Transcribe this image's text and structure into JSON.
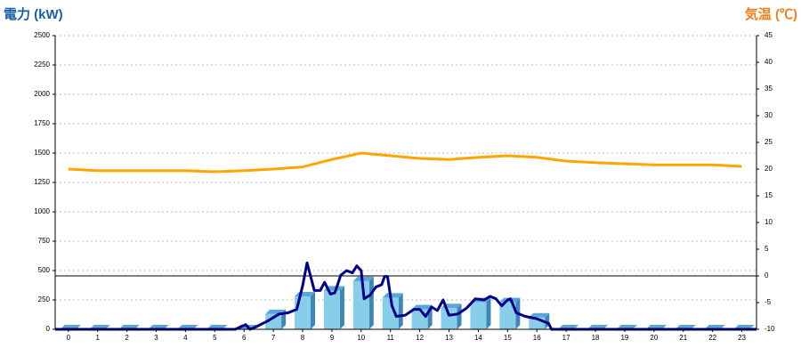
{
  "chart_data": {
    "type": "combo",
    "ylabel": "電力 (kW)",
    "y2label": "気温 (℃)",
    "xlim": [
      -0.45,
      23.5
    ],
    "xticks": [
      0,
      1,
      2,
      3,
      4,
      5,
      6,
      7,
      8,
      9,
      10,
      11,
      12,
      13,
      14,
      15,
      16,
      17,
      18,
      19,
      20,
      21,
      22,
      23
    ],
    "ylim": [
      0,
      2500
    ],
    "yticks": [
      0,
      250,
      500,
      750,
      1000,
      1250,
      1500,
      1750,
      2000,
      2250,
      2500
    ],
    "y2lim": [
      -10,
      45
    ],
    "y2ticks": [
      -10,
      -5,
      0,
      5,
      10,
      15,
      20,
      25,
      30,
      35,
      40,
      45
    ],
    "grid": true,
    "series": [
      {
        "type": "bar",
        "color": "#87ceeb",
        "x": [
          0,
          1,
          2,
          3,
          4,
          5,
          6,
          7,
          8,
          9,
          10,
          11,
          12,
          13,
          14,
          15,
          16,
          17,
          18,
          19,
          20,
          21,
          22,
          23
        ],
        "values": [
          0,
          0,
          0,
          0,
          0,
          0,
          0,
          130,
          280,
          330,
          410,
          270,
          170,
          180,
          230,
          230,
          100,
          0,
          0,
          0,
          0,
          0,
          0,
          0
        ]
      },
      {
        "type": "line",
        "color": "#00008b",
        "x": [
          -0.45,
          5.7,
          6.05,
          6.2,
          6.4,
          6.8,
          7.2,
          7.5,
          7.8,
          8.0,
          8.15,
          8.4,
          8.6,
          8.75,
          8.95,
          9.1,
          9.3,
          9.5,
          9.7,
          9.85,
          10.0,
          10.1,
          10.3,
          10.5,
          10.7,
          10.8,
          10.9,
          11.05,
          11.2,
          11.5,
          11.8,
          12.0,
          12.2,
          12.4,
          12.6,
          12.8,
          13.0,
          13.3,
          13.6,
          13.9,
          14.2,
          14.4,
          14.6,
          14.8,
          15.0,
          15.1,
          15.3,
          15.6,
          16.0,
          16.4,
          16.5,
          23.5
        ],
        "values": [
          0,
          0,
          40,
          0,
          20,
          70,
          130,
          140,
          170,
          370,
          565,
          330,
          330,
          400,
          300,
          310,
          460,
          500,
          480,
          540,
          500,
          260,
          290,
          360,
          380,
          450,
          450,
          200,
          110,
          120,
          170,
          170,
          110,
          190,
          160,
          250,
          120,
          130,
          180,
          260,
          250,
          280,
          260,
          200,
          250,
          260,
          140,
          110,
          90,
          50,
          0,
          0
        ]
      },
      {
        "type": "line",
        "axis": "y2",
        "color": "#ffa500",
        "x": [
          0,
          1,
          2,
          3,
          4,
          5,
          6,
          7,
          8,
          9,
          10,
          11,
          12,
          13,
          14,
          15,
          16,
          17,
          18,
          19,
          20,
          21,
          22,
          23
        ],
        "values": [
          20,
          19.7,
          19.7,
          19.7,
          19.7,
          19.5,
          19.7,
          20,
          20.4,
          21.8,
          23,
          22.5,
          22,
          21.8,
          22.2,
          22.5,
          22.2,
          21.5,
          21.2,
          21,
          20.8,
          20.8,
          20.8,
          20.5
        ]
      }
    ]
  }
}
